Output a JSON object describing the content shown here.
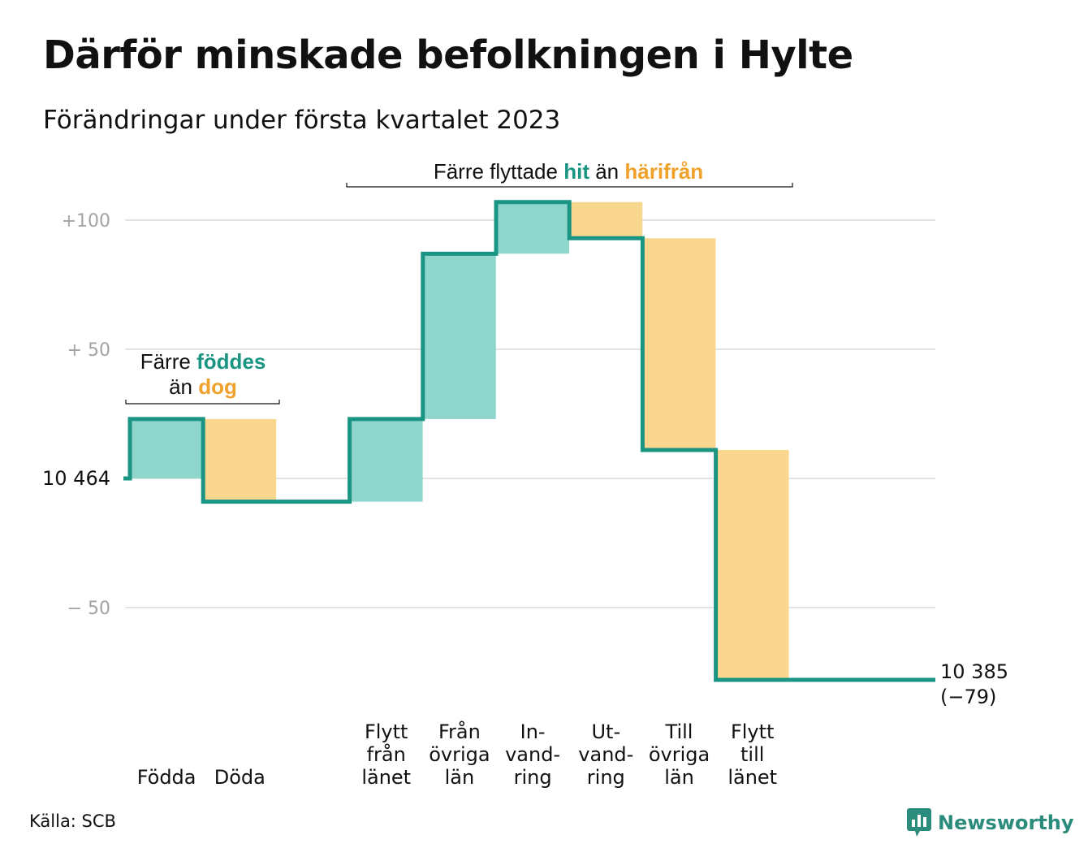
{
  "title": "Därför minskade befolkningen i Hylte",
  "subtitle": "Förändringar under första kvartalet 2023",
  "source": "Källa: SCB",
  "brand": {
    "name": "Newsworthy",
    "icon": "chart-bubble-icon"
  },
  "colors": {
    "increase": "#8fd6cc",
    "decrease": "#f9d78f",
    "line": "#1a9483",
    "grid": "#e3e3e3",
    "tick": "#a3a3a3"
  },
  "annotations": {
    "births": {
      "line1": "Färre",
      "green": "föddes",
      "line2_pre": "än",
      "orange": "dog"
    },
    "moves": {
      "pre": "Färre flyttade",
      "green": "hit",
      "mid": "än",
      "orange": "härifrån"
    }
  },
  "chart_data": {
    "type": "waterfall",
    "start_label": "10 464",
    "start_value": 10464,
    "end_label": "10 385",
    "end_change_label": "(−79)",
    "end_value": 10385,
    "y_ticks": [
      {
        "value": 100,
        "label": "+100"
      },
      {
        "value": 50,
        "label": "+ 50"
      },
      {
        "value": 0,
        "label": "10 464"
      },
      {
        "value": -50,
        "label": "− 50"
      }
    ],
    "ylim": [
      -90,
      110
    ],
    "steps": [
      {
        "label_lines": [
          "Födda"
        ],
        "change": 23
      },
      {
        "label_lines": [
          "Döda"
        ],
        "change": -32
      },
      {
        "label_lines": [],
        "change": 0
      },
      {
        "label_lines": [
          "Flytt",
          "från",
          "länet"
        ],
        "change": 32
      },
      {
        "label_lines": [
          "Från",
          "övriga",
          "län"
        ],
        "change": 64
      },
      {
        "label_lines": [
          "In-",
          "vand-",
          "ring"
        ],
        "change": 20
      },
      {
        "label_lines": [
          "Ut-",
          "vand-",
          "ring"
        ],
        "change": -14
      },
      {
        "label_lines": [
          "Till",
          "övriga",
          "län"
        ],
        "change": -82
      },
      {
        "label_lines": [
          "Flytt",
          "till",
          "länet"
        ],
        "change": -89
      }
    ]
  }
}
